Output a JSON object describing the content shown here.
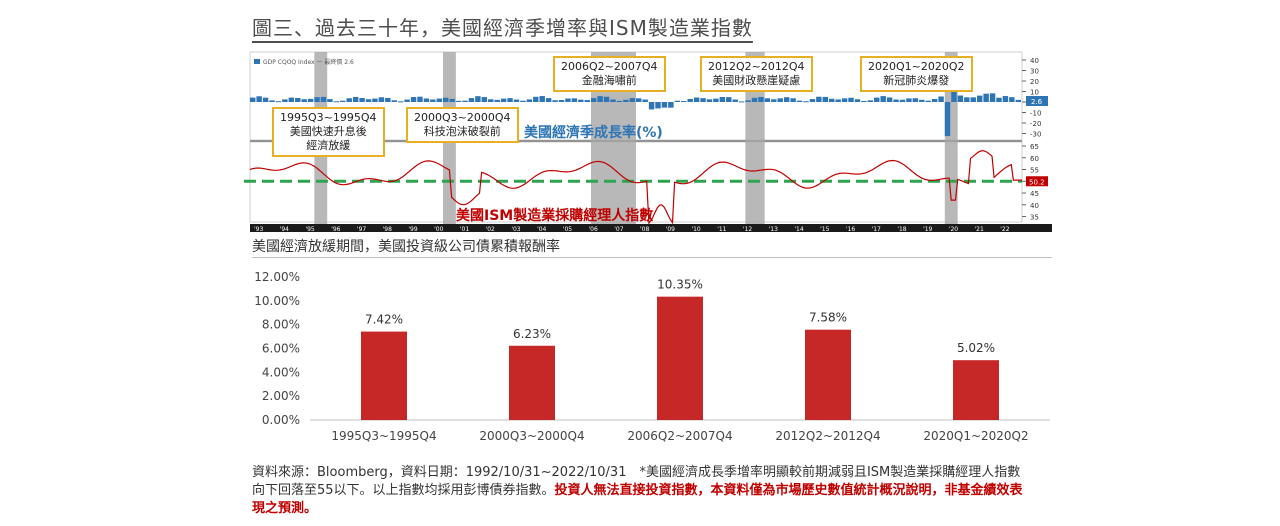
{
  "title": "圖三、過去三十年，美國經濟季增率與ISM製造業指數",
  "upper_panel": {
    "legend_gdp": "GDP CQOQ Index － 最終價 2.6",
    "gdp_label": "美國經濟季成長率(%)",
    "ism_label": "美國ISM製造業採購經理人指數",
    "gdp_tag": "2.6",
    "ism_tag": "50.2",
    "callouts": [
      {
        "period": "1995Q3~1995Q4",
        "desc1": "美國快速升息後",
        "desc2": "經濟放緩"
      },
      {
        "period": "2000Q3~2000Q4",
        "desc1": "科技泡沫破裂前",
        "desc2": ""
      },
      {
        "period": "2006Q2~2007Q4",
        "desc1": "金融海嘯前",
        "desc2": ""
      },
      {
        "period": "2012Q2~2012Q4",
        "desc1": "美國財政懸崖疑慮",
        "desc2": ""
      },
      {
        "period": "2020Q1~2020Q2",
        "desc1": "新冠肺炎爆發",
        "desc2": ""
      }
    ],
    "gdp_axis_ticks": [
      "40",
      "30",
      "20",
      "10",
      "0",
      "-10",
      "-20",
      "-30"
    ],
    "ism_axis_ticks": [
      "65",
      "60",
      "55",
      "50",
      "45",
      "40",
      "35"
    ],
    "year_ticks": [
      "'93",
      "'94",
      "'95",
      "'96",
      "'97",
      "'98",
      "'99",
      "'00",
      "'01",
      "'02",
      "'03",
      "'04",
      "'05",
      "'06",
      "'07",
      "'08",
      "'09",
      "'10",
      "'11",
      "'12",
      "'13",
      "'14",
      "'15",
      "'16",
      "'17",
      "'18",
      "'19",
      "'20",
      "'21",
      "'22"
    ],
    "colors": {
      "gdp": "#2e75b6",
      "ism": "#c00000",
      "threshold": "#2ea44f",
      "shade": "#a6a6a6",
      "callout_border": "#e6b022"
    }
  },
  "lower_title": "美國經濟放緩期間，美國投資級公司債累積報酬率",
  "chart_data": {
    "type": "bar",
    "title": "美國經濟放緩期間，美國投資級公司債累積報酬率",
    "categories": [
      "1995Q3~1995Q4",
      "2000Q3~2000Q4",
      "2006Q2~2007Q4",
      "2012Q2~2012Q4",
      "2020Q1~2020Q2"
    ],
    "values": [
      7.42,
      6.23,
      10.35,
      7.58,
      5.02
    ],
    "value_labels": [
      "7.42%",
      "6.23%",
      "10.35%",
      "7.58%",
      "5.02%"
    ],
    "ylim": [
      0,
      12
    ],
    "y_ticks": [
      "0.00%",
      "2.00%",
      "4.00%",
      "6.00%",
      "8.00%",
      "10.00%",
      "12.00%"
    ],
    "xlabel": "",
    "ylabel": "",
    "grid": false,
    "bar_color": "#c62828"
  },
  "footnote": {
    "line1": "資料來源：Bloomberg，資料日期：1992/10/31~2022/10/31　*美國經濟成長季增率明顯較前期減弱且ISM製造業採購經理人指數向下回落至55以下。以上指數均採用彭博債券指數。",
    "warning": "投資人無法直接投資指數，本資料僅為市場歷史數值統計概況說明，非基金績效表現之預測。"
  }
}
